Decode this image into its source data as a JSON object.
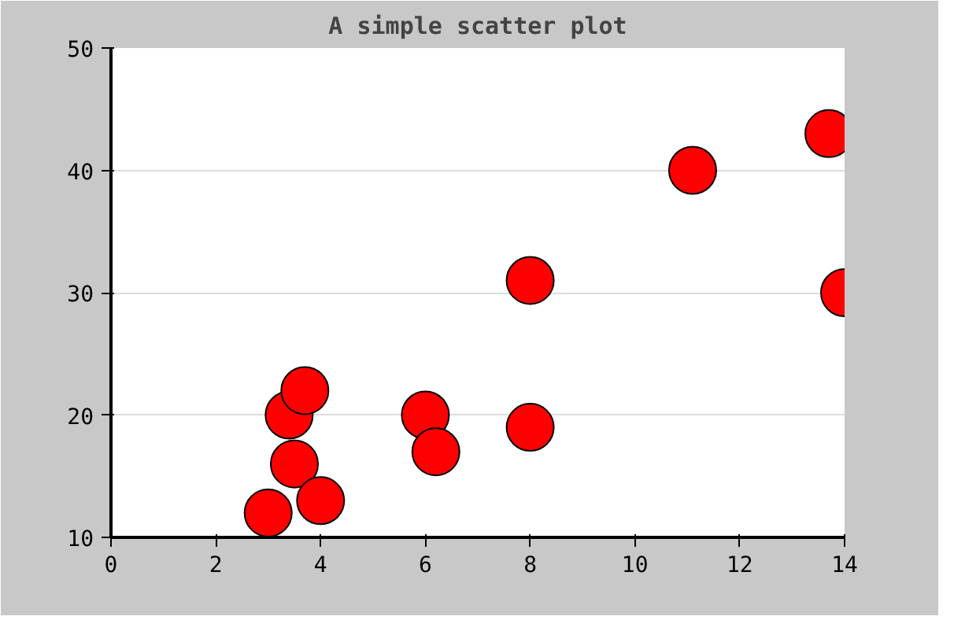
{
  "chart_data": {
    "type": "scatter",
    "title": "A simple scatter plot",
    "x": [
      3.0,
      3.4,
      3.7,
      3.5,
      4.0,
      6.0,
      6.2,
      8.0,
      8.0,
      11.1,
      13.7,
      14.0
    ],
    "values": [
      12,
      20,
      22,
      16,
      13,
      20,
      17,
      31,
      19,
      40,
      43,
      30
    ],
    "color": "#ff0000",
    "marker": "circle",
    "xlim": [
      0,
      14
    ],
    "ylim": [
      10,
      50
    ],
    "xticks": [
      0,
      2,
      4,
      6,
      8,
      10,
      12,
      14
    ],
    "yticks": [
      10,
      20,
      30,
      40,
      50
    ],
    "grid": "y"
  }
}
